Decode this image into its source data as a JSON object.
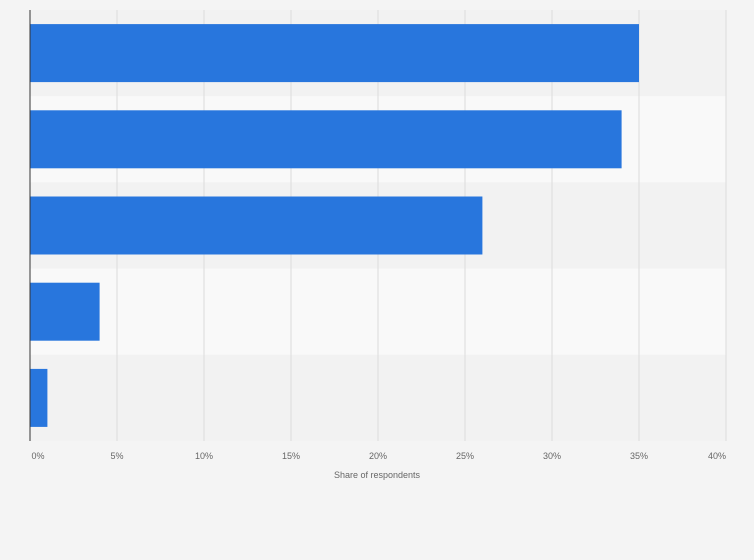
{
  "chart_data": {
    "type": "bar",
    "orientation": "horizontal",
    "title": "",
    "categories": [
      "",
      "",
      "",
      "",
      ""
    ],
    "values": [
      35,
      34,
      26,
      4,
      1
    ],
    "xlabel": "Share of respondents",
    "ylabel": "",
    "xlim": [
      0,
      40
    ],
    "x_ticks": [
      "0%",
      "5%",
      "10%",
      "15%",
      "20%",
      "25%",
      "30%",
      "35%",
      "40%"
    ],
    "grid": true,
    "legend": "none",
    "bar_color": "#2876dd",
    "band_colors": [
      "#f2f2f2",
      "#f9f9f9"
    ]
  }
}
